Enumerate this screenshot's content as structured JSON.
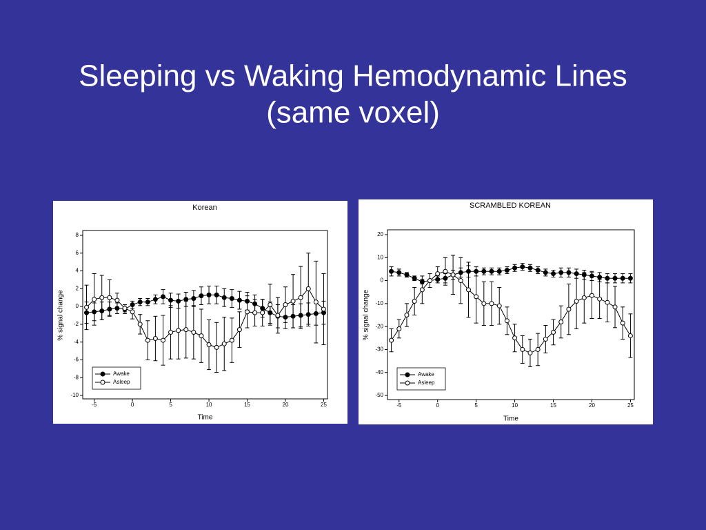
{
  "slide": {
    "title_lines": [
      "Sleeping vs Waking Hemodynamic Lines",
      "(same voxel)"
    ]
  },
  "chart_data": [
    {
      "type": "line",
      "title": "Korean",
      "xlabel": "Time",
      "ylabel": "% signal change",
      "x": [
        -6,
        -5,
        -4,
        -3,
        -2,
        -1,
        0,
        1,
        2,
        3,
        4,
        5,
        6,
        7,
        8,
        9,
        10,
        11,
        12,
        13,
        14,
        15,
        16,
        17,
        18,
        19,
        20,
        21,
        22,
        23,
        24,
        25
      ],
      "xlim": [
        -6.5,
        25.5
      ],
      "xticks": [
        -5,
        0,
        5,
        10,
        15,
        20,
        25
      ],
      "ylim": [
        -10,
        8
      ],
      "yticks": [
        -10,
        -8,
        -6,
        -4,
        -2,
        0,
        2,
        4,
        6,
        8
      ],
      "legend": "lower left",
      "series": [
        {
          "name": "Awake",
          "color": "#000000",
          "marker": "filled",
          "values": [
            -0.7,
            -0.6,
            -0.5,
            -0.3,
            -0.2,
            -0.3,
            0.2,
            0.5,
            0.5,
            0.8,
            1.1,
            0.7,
            0.6,
            0.8,
            0.9,
            1.2,
            1.3,
            1.3,
            1.0,
            0.9,
            0.7,
            0.6,
            0.3,
            -0.2,
            -0.7,
            -1.1,
            -1.2,
            -1.1,
            -1.0,
            -0.9,
            -0.8,
            -0.7
          ],
          "errors": [
            1.2,
            1.0,
            1.0,
            0.8,
            0.6,
            0.5,
            0.4,
            0.4,
            0.4,
            0.5,
            0.8,
            0.8,
            0.8,
            0.8,
            0.9,
            1.0,
            1.0,
            1.0,
            1.0,
            1.0,
            1.0,
            1.0,
            1.0,
            1.0,
            1.2,
            1.3,
            1.3,
            1.3,
            1.3,
            1.3,
            1.3,
            1.3
          ]
        },
        {
          "name": "Asleep",
          "color": "#000000",
          "marker": "open",
          "values": [
            -0.1,
            0.8,
            1.0,
            1.0,
            0.7,
            -0.2,
            -0.6,
            -2.0,
            -3.8,
            -3.6,
            -3.8,
            -2.9,
            -2.7,
            -2.6,
            -2.9,
            -3.3,
            -4.3,
            -4.6,
            -4.2,
            -3.8,
            -2.6,
            -0.6,
            -0.7,
            -0.7,
            0.2,
            -1.0,
            0.2,
            0.6,
            1.0,
            2.0,
            0.5,
            -0.3
          ],
          "errors": [
            2.5,
            2.9,
            2.5,
            2.0,
            0.8,
            0.4,
            0.8,
            1.1,
            2.2,
            2.5,
            2.8,
            3.0,
            3.2,
            3.2,
            3.0,
            3.0,
            2.8,
            2.8,
            3.0,
            2.5,
            2.0,
            1.8,
            1.5,
            1.5,
            2.3,
            2.0,
            2.0,
            3.0,
            3.5,
            4.0,
            4.6,
            4.0
          ]
        }
      ]
    },
    {
      "type": "line",
      "title": "SCRAMBLED KOREAN",
      "xlabel": "Time",
      "ylabel": "% signal change",
      "x": [
        -6,
        -5,
        -4,
        -3,
        -2,
        -1,
        0,
        1,
        2,
        3,
        4,
        5,
        6,
        7,
        8,
        9,
        10,
        11,
        12,
        13,
        14,
        15,
        16,
        17,
        18,
        19,
        20,
        21,
        22,
        23,
        24,
        25
      ],
      "xlim": [
        -6.5,
        25.5
      ],
      "xticks": [
        -5,
        0,
        5,
        10,
        15,
        20,
        25
      ],
      "ylim": [
        -50,
        20
      ],
      "yticks": [
        -50,
        -40,
        -30,
        -20,
        -10,
        0,
        10,
        20
      ],
      "legend": "lower left",
      "series": [
        {
          "name": "Awake",
          "color": "#000000",
          "marker": "filled",
          "values": [
            4,
            3.5,
            2.5,
            1,
            -0.5,
            0,
            0.5,
            1,
            2.5,
            3.5,
            4,
            4,
            4,
            4,
            4,
            4.5,
            5.5,
            6,
            5.5,
            4.5,
            3.5,
            3,
            3.5,
            3.5,
            3,
            2.5,
            2,
            1.5,
            1,
            1,
            1,
            1
          ],
          "errors": [
            2,
            1.5,
            1,
            1,
            1,
            0.5,
            1.5,
            2,
            2,
            2,
            2.5,
            2,
            1.5,
            1.5,
            1.5,
            1.5,
            1.5,
            1.5,
            1.5,
            1.5,
            1.5,
            1.5,
            2,
            2,
            2,
            2,
            2,
            2,
            2,
            2,
            2,
            2
          ]
        },
        {
          "name": "Asleep",
          "color": "#000000",
          "marker": "open",
          "values": [
            -26,
            -21,
            -15,
            -9,
            -4,
            0,
            3,
            4,
            2.5,
            0,
            -4,
            -7,
            -10,
            -10,
            -11,
            -17.5,
            -25,
            -30,
            -31.5,
            -30,
            -25.5,
            -22.5,
            -18,
            -12.5,
            -9,
            -7.5,
            -6.5,
            -8,
            -9.5,
            -11.5,
            -18.5,
            -24
          ],
          "errors": [
            5,
            4,
            5,
            6,
            6,
            3,
            3,
            6,
            8.5,
            10,
            12,
            11.5,
            9.5,
            9.5,
            8,
            6,
            6,
            6,
            6,
            7,
            6,
            5.5,
            7,
            11,
            12,
            11,
            10,
            8.5,
            8.5,
            9,
            7,
            9.5
          ]
        }
      ]
    }
  ]
}
